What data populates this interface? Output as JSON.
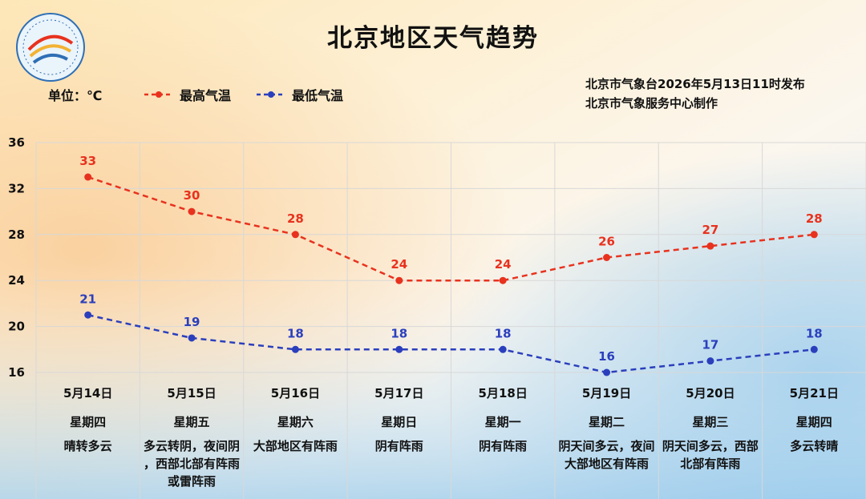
{
  "header": {
    "title": "北京地区天气趋势",
    "unit_label": "单位：℃",
    "issuer_line1": "北京市气象台2026年5月13日11时发布",
    "issuer_line2": "北京市气象服务中心制作",
    "logo_text": "METEOROLOGICAL SERVICE · 气象北京"
  },
  "colors": {
    "high": "#e8321e",
    "low": "#2b3fbd",
    "grid": "#d8d8d8"
  },
  "chart_data": {
    "type": "line",
    "title": "北京地区天气趋势",
    "ylabel": "单位：℃",
    "ylim": [
      16,
      36
    ],
    "yticks": [
      36,
      32,
      28,
      24,
      20,
      16
    ],
    "grid": true,
    "legend_position": "top-left",
    "categories": [
      "5月14日",
      "5月15日",
      "5月16日",
      "5月17日",
      "5月18日",
      "5月19日",
      "5月20日",
      "5月21日"
    ],
    "weekdays": [
      "星期四",
      "星期五",
      "星期六",
      "星期日",
      "星期一",
      "星期二",
      "星期三",
      "星期四"
    ],
    "weather": [
      "晴转多云",
      "多云转阴，夜间阴，西部北部有阵雨或雷阵雨",
      "大部地区有阵雨",
      "阴有阵雨",
      "阴有阵雨",
      "阴天间多云，夜间大部地区有阵雨",
      "阴天间多云，西部北部有阵雨",
      "多云转晴"
    ],
    "series": [
      {
        "name": "最高气温",
        "values": [
          33,
          30,
          28,
          24,
          24,
          26,
          27,
          28
        ]
      },
      {
        "name": "最低气温",
        "values": [
          21,
          19,
          18,
          18,
          18,
          16,
          17,
          18
        ]
      }
    ]
  }
}
